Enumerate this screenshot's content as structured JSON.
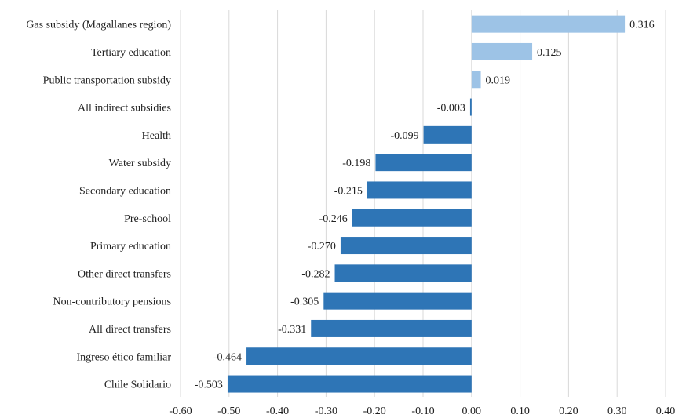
{
  "chart_data": {
    "type": "bar",
    "orientation": "horizontal",
    "title": "",
    "xlabel": "",
    "ylabel": "",
    "xlim": [
      -0.6,
      0.4
    ],
    "tick_step": 0.1,
    "grid": "vertical",
    "legend": "none",
    "colors": {
      "positive": "#9dc3e6",
      "negative": "#2e75b6"
    },
    "categories": [
      "Gas subsidy (Magallanes region)",
      "Tertiary education",
      "Public transportation subsidy",
      "All indirect subsidies",
      "Health",
      "Water subsidy",
      "Secondary education",
      "Pre-school",
      "Primary education",
      "Other direct transfers",
      "Non-contributory pensions",
      "All direct transfers",
      "Ingreso ético familiar",
      "Chile Solidario"
    ],
    "values": [
      0.316,
      0.125,
      0.019,
      -0.003,
      -0.099,
      -0.198,
      -0.215,
      -0.246,
      -0.27,
      -0.282,
      -0.305,
      -0.331,
      -0.464,
      -0.503
    ],
    "value_labels": [
      "0.316",
      "0.125",
      "0.019",
      "-0.003",
      "-0.099",
      "-0.198",
      "-0.215",
      "-0.246",
      "-0.270",
      "-0.282",
      "-0.305",
      "-0.331",
      "-0.464",
      "-0.503"
    ],
    "tick_labels": [
      "-0.60",
      "-0.50",
      "-0.40",
      "-0.30",
      "-0.20",
      "-0.10",
      "0.00",
      "0.10",
      "0.20",
      "0.30",
      "0.40"
    ]
  }
}
